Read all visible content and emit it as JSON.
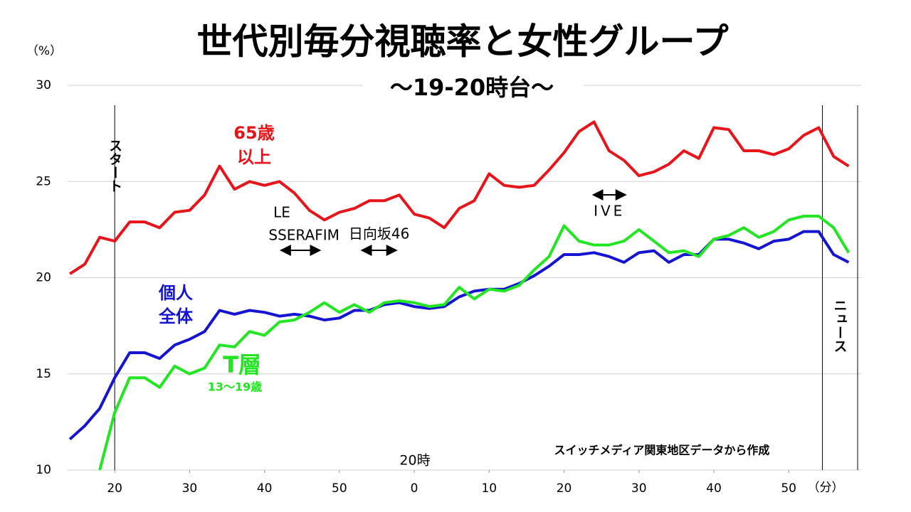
{
  "chart_data": {
    "type": "line",
    "title": "世代別毎分視聴率と女性グループ",
    "subtitle": "～19-20時台～",
    "y_unit": "（%）",
    "x_unit": "（分）",
    "hour_label": "20時",
    "source": "スイッチメディア関東地区データから作成",
    "xlim": [
      13.9,
      119.2
    ],
    "ylim": [
      10,
      30
    ],
    "yticks": [
      10,
      15,
      20,
      25,
      30
    ],
    "xticks": [
      20,
      30,
      40,
      50,
      {
        "value": 60,
        "label": "0"
      },
      {
        "value": 70,
        "label": "10"
      },
      {
        "value": 80,
        "label": "20"
      },
      {
        "value": 90,
        "label": "30"
      },
      {
        "value": 100,
        "label": "40"
      },
      {
        "value": 110,
        "label": "50"
      }
    ],
    "grid": true,
    "x": [
      14,
      16,
      18,
      20,
      22,
      24,
      26,
      28,
      30,
      32,
      34,
      36,
      38,
      40,
      42,
      44,
      46,
      48,
      50,
      52,
      54,
      56,
      58,
      60,
      62,
      64,
      66,
      68,
      70,
      72,
      74,
      76,
      78,
      80,
      82,
      84,
      86,
      88,
      90,
      92,
      94,
      96,
      98,
      100,
      102,
      104,
      106,
      108,
      110,
      112,
      114,
      116,
      118
    ],
    "series": [
      {
        "label_lines": [
          "65歳",
          "以上"
        ],
        "color": "#e8141a",
        "values": [
          20.2,
          20.7,
          22.1,
          21.9,
          22.9,
          22.9,
          22.6,
          23.4,
          23.5,
          24.3,
          25.8,
          24.6,
          25.0,
          24.8,
          25.0,
          24.4,
          23.5,
          23.0,
          23.4,
          23.6,
          24.0,
          24.0,
          24.3,
          23.3,
          23.1,
          22.6,
          23.6,
          24.0,
          25.4,
          24.8,
          24.7,
          24.8,
          25.6,
          26.5,
          27.6,
          28.1,
          26.6,
          26.1,
          25.3,
          25.5,
          25.9,
          26.6,
          26.2,
          27.8,
          27.7,
          26.6,
          26.6,
          26.4,
          26.7,
          27.4,
          27.8,
          26.3,
          25.8
        ]
      },
      {
        "label_lines": [
          "個人",
          "全体"
        ],
        "color": "#1414d2",
        "values": [
          11.6,
          12.3,
          13.2,
          14.8,
          16.1,
          16.1,
          15.8,
          16.5,
          16.8,
          17.2,
          18.3,
          18.1,
          18.3,
          18.2,
          18.0,
          18.1,
          18.0,
          17.8,
          17.9,
          18.3,
          18.3,
          18.6,
          18.7,
          18.5,
          18.4,
          18.5,
          19.0,
          19.3,
          19.4,
          19.4,
          19.7,
          20.1,
          20.6,
          21.2,
          21.2,
          21.3,
          21.1,
          20.8,
          21.3,
          21.4,
          20.8,
          21.2,
          21.2,
          22.0,
          22.0,
          21.8,
          21.5,
          21.9,
          22.0,
          22.4,
          22.4,
          21.2,
          20.8
        ]
      },
      {
        "label_lines": [
          "T層",
          "13～19歳"
        ],
        "color": "#22e622",
        "values": [
          null,
          null,
          10.0,
          13.0,
          14.8,
          14.8,
          14.3,
          15.4,
          15.0,
          15.3,
          16.5,
          16.4,
          17.2,
          17.0,
          17.7,
          17.8,
          18.2,
          18.7,
          18.2,
          18.6,
          18.2,
          18.7,
          18.8,
          18.7,
          18.5,
          18.6,
          19.5,
          18.9,
          19.4,
          19.3,
          19.6,
          20.4,
          21.1,
          22.7,
          21.9,
          21.7,
          21.7,
          21.9,
          22.5,
          21.9,
          21.3,
          21.4,
          21.1,
          22.0,
          22.2,
          22.6,
          22.1,
          22.4,
          23.0,
          23.2,
          23.2,
          22.6,
          21.3
        ]
      }
    ],
    "markers": [
      {
        "x": 20,
        "label": "スタート"
      },
      {
        "x": 114.5,
        "label": "ニュース"
      }
    ],
    "events": [
      {
        "label_lines": [
          "LE",
          "SSERAFIM"
        ],
        "from": 42.4,
        "to": 47.2
      },
      {
        "label_lines": [
          "日向坂46"
        ],
        "from": 53.2,
        "to": 57.4
      },
      {
        "label_lines": [
          "IVE"
        ],
        "from": 84.1,
        "to": 88
      }
    ]
  }
}
